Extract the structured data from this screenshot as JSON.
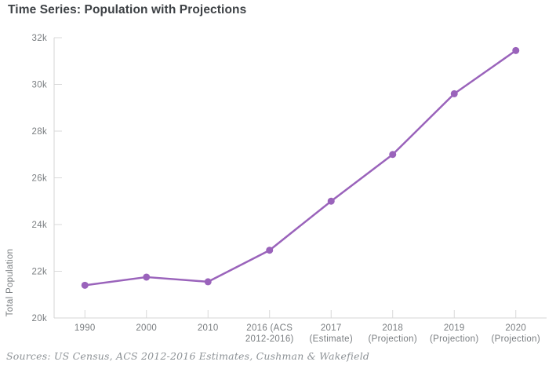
{
  "title": "Time Series: Population with Projections",
  "source": "Sources: US Census, ACS 2012-2016 Estimates, Cushman & Wakefield",
  "colors": {
    "line": "#9a63bb",
    "marker": "#9a63bb",
    "axis": "#d6d6d6",
    "tick": "#d9d9d9",
    "tick_label": "#797d80",
    "axis_title": "#797d80",
    "title": "#3d4145",
    "source": "#8d9296",
    "background": "#ffffff"
  },
  "chart_data": {
    "type": "line",
    "title": "Time Series: Population with Projections",
    "xlabel": "",
    "ylabel": "Total Population",
    "categories": [
      "1990",
      "2000",
      "2010",
      "2016 (ACS 2012-2016)",
      "2017 (Estimate)",
      "2018 (Projection)",
      "2019 (Projection)",
      "2020 (Projection)"
    ],
    "x_tick_lines": [
      [
        "1990"
      ],
      [
        "2000"
      ],
      [
        "2010"
      ],
      [
        "2016 (ACS",
        "2012-2016)"
      ],
      [
        "2017",
        "(Estimate)"
      ],
      [
        "2018",
        "(Projection)"
      ],
      [
        "2019",
        "(Projection)"
      ],
      [
        "2020",
        "(Projection)"
      ]
    ],
    "series": [
      {
        "name": "Total Population",
        "values": [
          21400,
          21750,
          21550,
          22900,
          25000,
          27000,
          29600,
          31450
        ]
      }
    ],
    "ylim": [
      20000,
      32000
    ],
    "y_tick_step": 2000,
    "y_tick_labels": [
      "20k",
      "22k",
      "24k",
      "26k",
      "28k",
      "30k",
      "32k"
    ],
    "grid": false,
    "legend": "none",
    "marker": "circle",
    "annotations": []
  }
}
